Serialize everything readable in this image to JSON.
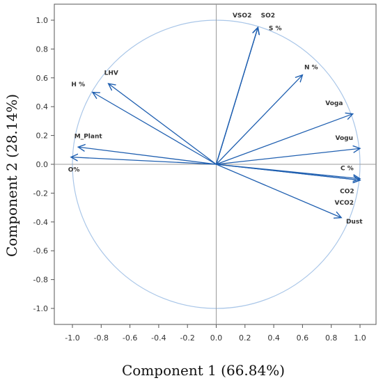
{
  "chart_data": {
    "type": "scatter",
    "subtype": "pca-loading-plot",
    "xlabel": "Component 1 (66.84%)",
    "ylabel": "Component 2 (28.14%)",
    "xlim": [
      -1.1,
      1.1
    ],
    "ylim": [
      -1.1,
      1.1
    ],
    "xticks": [
      "-1.0",
      "-0.8",
      "-0.6",
      "-0.4",
      "-0.2",
      "0.0",
      "0.2",
      "0.4",
      "0.6",
      "0.8",
      "1.0"
    ],
    "yticks": [
      "1.0",
      "0.8",
      "0.6",
      "0.4",
      "0.2",
      "0.0",
      "-0.2",
      "-0.4",
      "-0.6",
      "-0.8",
      "-1.0"
    ],
    "unit_circle": true,
    "reference_lines": [
      0,
      0
    ],
    "grid": false,
    "legend": "none",
    "colors": {
      "vector": "#1f5fb0",
      "circle": "#a9c6e8",
      "reference": "#9a9a9a",
      "frame": "#555555"
    },
    "loadings": [
      {
        "label": "VSO2",
        "x": 0.29,
        "y": 0.95,
        "label_x": 0.18,
        "label_y": 1.02
      },
      {
        "label": "SO2",
        "x": 0.29,
        "y": 0.95,
        "label_x": 0.36,
        "label_y": 1.02
      },
      {
        "label": "S %",
        "x": 0.29,
        "y": 0.95,
        "label_x": 0.41,
        "label_y": 0.93
      },
      {
        "label": "N %",
        "x": 0.6,
        "y": 0.62,
        "label_x": 0.66,
        "label_y": 0.66
      },
      {
        "label": "Voga",
        "x": 0.95,
        "y": 0.35,
        "label_x": 0.82,
        "label_y": 0.41
      },
      {
        "label": "Vogu",
        "x": 1.0,
        "y": 0.11,
        "label_x": 0.89,
        "label_y": 0.17
      },
      {
        "label": "C %",
        "x": 1.0,
        "y": -0.1,
        "label_x": 0.91,
        "label_y": -0.04
      },
      {
        "label": "CO2",
        "x": 1.0,
        "y": -0.11,
        "label_x": 0.91,
        "label_y": -0.2
      },
      {
        "label": "VCO2",
        "x": 1.0,
        "y": -0.11,
        "label_x": 0.89,
        "label_y": -0.28
      },
      {
        "label": "Dust",
        "x": 0.87,
        "y": -0.37,
        "label_x": 0.96,
        "label_y": -0.41
      },
      {
        "label": "LHV",
        "x": -0.75,
        "y": 0.56,
        "label_x": -0.73,
        "label_y": 0.62
      },
      {
        "label": "H %",
        "x": -0.86,
        "y": 0.5,
        "label_x": -0.96,
        "label_y": 0.54
      },
      {
        "label": "M_Plant",
        "x": -0.96,
        "y": 0.12,
        "label_x": -0.89,
        "label_y": 0.18
      },
      {
        "label": "O%",
        "x": -1.01,
        "y": 0.05,
        "label_x": -0.99,
        "label_y": -0.05
      }
    ]
  }
}
